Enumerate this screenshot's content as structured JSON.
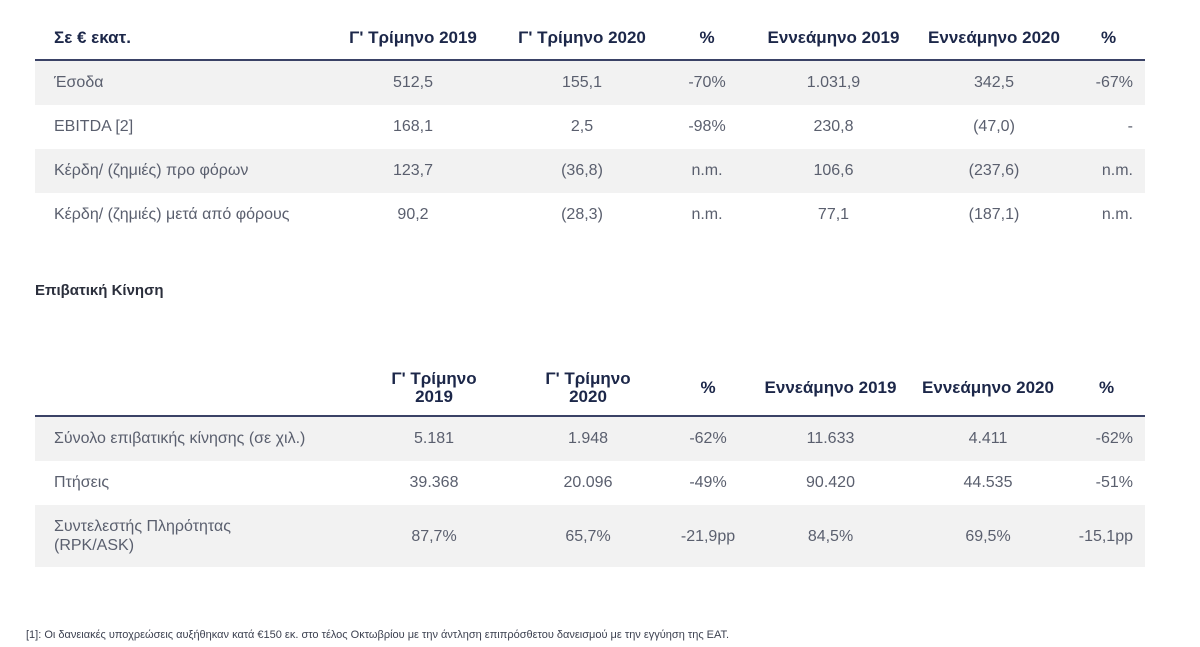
{
  "financial_table": {
    "headers": [
      "Σε € εκατ.",
      "Γ' Τρίμηνο 2019",
      "Γ' Τρίμηνο 2020",
      "%",
      "Εννεάμηνο 2019",
      "Εννεάμηνο  2020",
      "%"
    ],
    "rows": [
      [
        "Έσοδα",
        "512,5",
        "155,1",
        "-70%",
        "1.031,9",
        "342,5",
        "-67%"
      ],
      [
        "EBITDA [2]",
        "168,1",
        "2,5",
        "-98%",
        "230,8",
        "(47,0)",
        "-"
      ],
      [
        "Κέρδη/ (ζημιές) προ φόρων",
        "123,7",
        "(36,8)",
        "n.m.",
        "106,6",
        "(237,6)",
        "n.m."
      ],
      [
        "Κέρδη/ (ζημιές) μετά από φόρους",
        "90,2",
        "(28,3)",
        "n.m.",
        "77,1",
        "(187,1)",
        "n.m."
      ]
    ]
  },
  "section_title": "Επιβατική Κίνηση",
  "traffic_table": {
    "headers": {
      "q3_2019_line1": "Γ' Τρίμηνο",
      "q3_2019_line2": "2019",
      "q3_2020_line1": "Γ' Τρίμηνο",
      "q3_2020_line2": "2020",
      "pct1": "%",
      "nine_2019": "Εννεάμηνο 2019",
      "nine_2020": "Εννεάμηνο 2020",
      "pct2": "%"
    },
    "rows": [
      {
        "label": "Σύνολο επιβατικής κίνησης (σε χιλ.)",
        "label2": "",
        "values": [
          "5.181",
          "1.948",
          "-62%",
          "11.633",
          "4.411",
          "-62%"
        ]
      },
      {
        "label": "Πτήσεις",
        "label2": "",
        "values": [
          "39.368",
          "20.096",
          "-49%",
          "90.420",
          "44.535",
          "-51%"
        ]
      },
      {
        "label": "Συντελεστής Πληρότητας",
        "label2": "(RPK/ASK)",
        "values": [
          "87,7%",
          "65,7%",
          "-21,9pp",
          "84,5%",
          "69,5%",
          "-15,1pp"
        ]
      }
    ]
  },
  "footnote": "[1]: Οι δανειακές υποχρεώσεις αυξήθηκαν κατά €150 εκ. στο τέλος Οκτωβρίου με την άντληση επιπρόσθετου δανεισμού με την εγγύηση της ΕΑΤ."
}
